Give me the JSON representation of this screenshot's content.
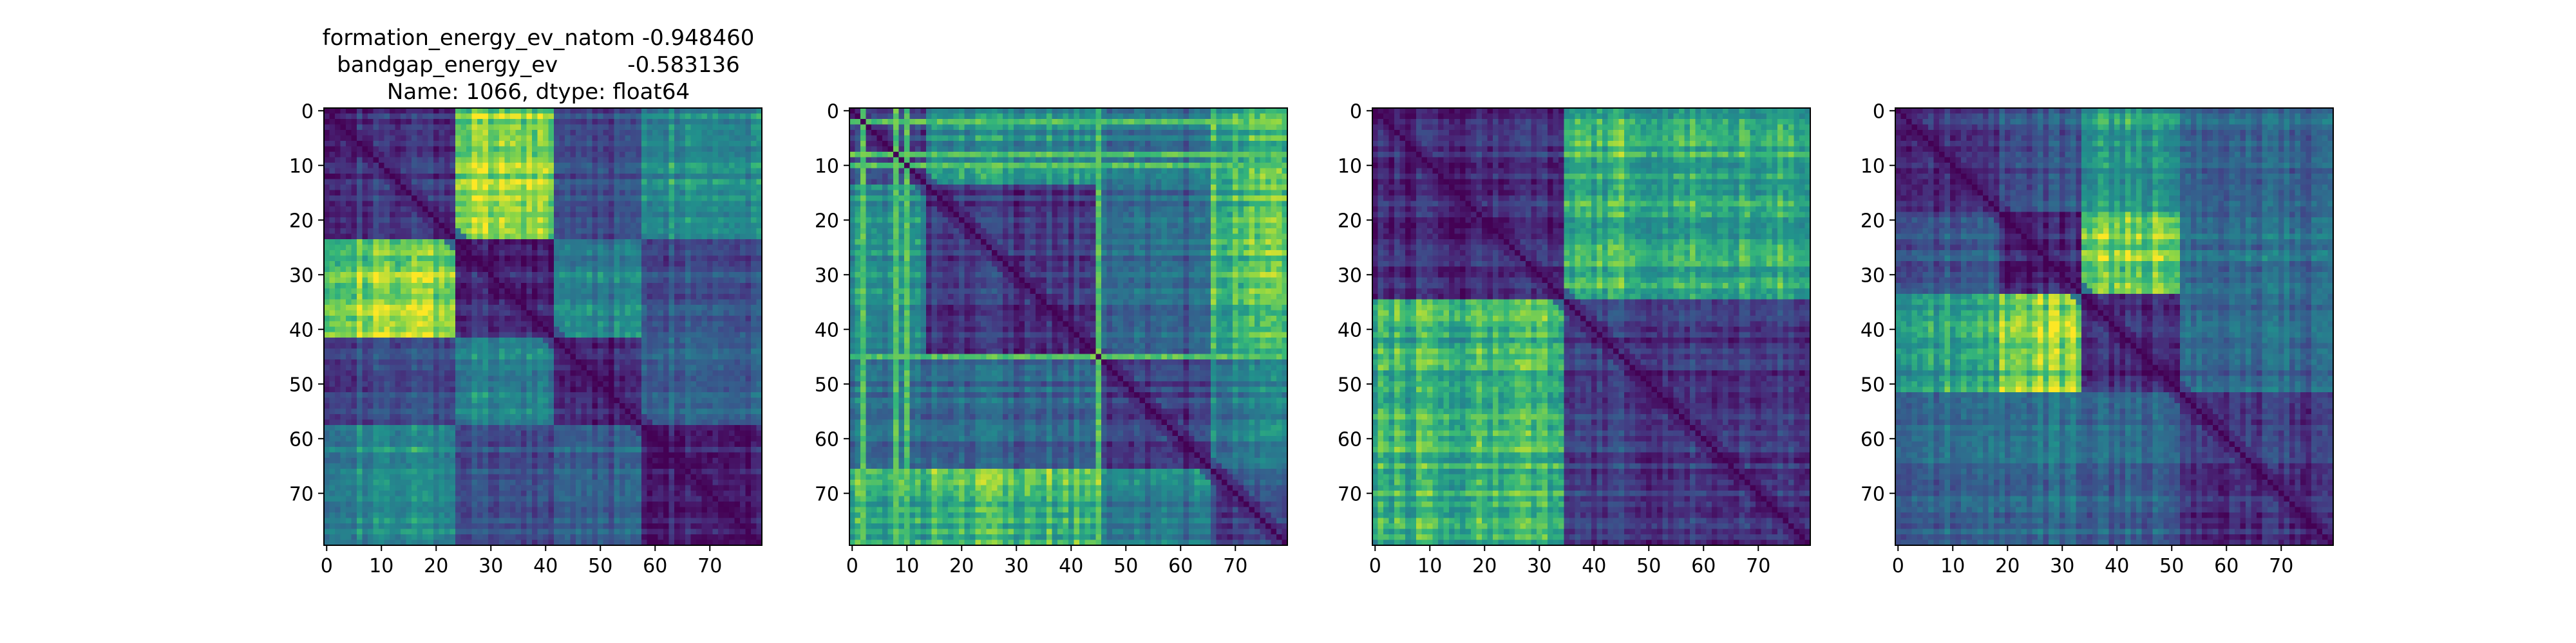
{
  "figure": {
    "title_lines": [
      "formation_energy_ev_natom   -0.948460",
      "bandgap_energy_ev          -0.583136",
      "Name: 1066, dtype: float64"
    ]
  },
  "chart_data": [
    {
      "type": "heatmap",
      "colormap": "viridis",
      "size": 80,
      "xlim": [
        0,
        79
      ],
      "ylim": [
        0,
        79
      ],
      "y_inverted": true,
      "xticks": [
        0,
        10,
        20,
        30,
        40,
        50,
        60,
        70
      ],
      "yticks": [
        0,
        10,
        20,
        30,
        40,
        50,
        60,
        70
      ],
      "title": "",
      "xlabel": "",
      "ylabel": "",
      "block_boundaries": [
        0,
        24,
        42,
        58,
        80
      ],
      "block_levels": [
        [
          0.18,
          0.85,
          0.28,
          0.6
        ],
        [
          0.85,
          0.12,
          0.55,
          0.32
        ],
        [
          0.28,
          0.55,
          0.15,
          0.42
        ],
        [
          0.6,
          0.32,
          0.42,
          0.15
        ]
      ],
      "bright_lines": [],
      "grid": false
    },
    {
      "type": "heatmap",
      "colormap": "viridis",
      "size": 80,
      "xlim": [
        0,
        79
      ],
      "ylim": [
        0,
        79
      ],
      "y_inverted": true,
      "xticks": [
        0,
        10,
        20,
        30,
        40,
        50,
        60,
        70
      ],
      "yticks": [
        0,
        10,
        20,
        30,
        40,
        50,
        60,
        70
      ],
      "title": "",
      "xlabel": "",
      "ylabel": "",
      "block_boundaries": [
        0,
        14,
        46,
        66,
        80
      ],
      "block_levels": [
        [
          0.25,
          0.6,
          0.45,
          0.7
        ],
        [
          0.6,
          0.2,
          0.4,
          0.75
        ],
        [
          0.45,
          0.4,
          0.2,
          0.5
        ],
        [
          0.7,
          0.75,
          0.5,
          0.25
        ]
      ],
      "bright_lines": [
        2,
        8,
        10,
        45
      ],
      "grid": false
    },
    {
      "type": "heatmap",
      "colormap": "viridis",
      "size": 80,
      "xlim": [
        0,
        79
      ],
      "ylim": [
        0,
        79
      ],
      "y_inverted": true,
      "xticks": [
        0,
        10,
        20,
        30,
        40,
        50,
        60,
        70
      ],
      "yticks": [
        0,
        10,
        20,
        30,
        40,
        50,
        60,
        70
      ],
      "title": "",
      "xlabel": "",
      "ylabel": "",
      "block_boundaries": [
        0,
        35,
        80
      ],
      "block_levels": [
        [
          0.15,
          0.72
        ],
        [
          0.72,
          0.22
        ]
      ],
      "bright_lines": [],
      "grid": false
    },
    {
      "type": "heatmap",
      "colormap": "viridis",
      "size": 80,
      "xlim": [
        0,
        79
      ],
      "ylim": [
        0,
        79
      ],
      "y_inverted": true,
      "xticks": [
        0,
        10,
        20,
        30,
        40,
        50,
        60,
        70
      ],
      "yticks": [
        0,
        10,
        20,
        30,
        40,
        50,
        60,
        70
      ],
      "title": "",
      "xlabel": "",
      "ylabel": "",
      "block_boundaries": [
        0,
        19,
        34,
        52,
        80
      ],
      "block_levels": [
        [
          0.18,
          0.35,
          0.65,
          0.4
        ],
        [
          0.35,
          0.15,
          0.85,
          0.45
        ],
        [
          0.65,
          0.85,
          0.15,
          0.4
        ],
        [
          0.4,
          0.45,
          0.4,
          0.18
        ]
      ],
      "bright_lines": [],
      "grid": false
    }
  ]
}
